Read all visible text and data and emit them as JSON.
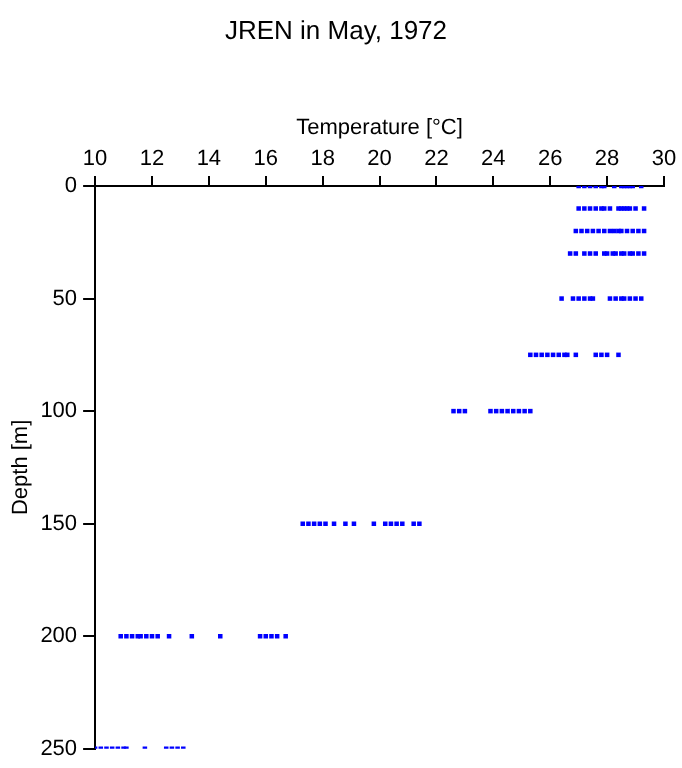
{
  "chart_data": {
    "type": "scatter",
    "title": "JREN in May, 1972",
    "xlabel": "Temperature [°C]",
    "ylabel": "Depth [m]",
    "xlim": [
      10,
      30
    ],
    "xticks": [
      10,
      12,
      14,
      16,
      18,
      20,
      22,
      24,
      26,
      28,
      30
    ],
    "ylim": [
      250,
      0
    ],
    "yticks": [
      0,
      50,
      100,
      150,
      200,
      250
    ],
    "grid": false,
    "legend": false,
    "marker": "square",
    "series": [
      {
        "color": "#0000ff",
        "x": [
          27.0,
          27.2,
          27.4,
          27.6,
          27.8,
          27.9,
          28.25,
          28.5,
          28.6,
          28.7,
          28.8,
          28.9,
          29.2,
          27.0,
          27.2,
          27.4,
          27.6,
          27.8,
          27.9,
          28.1,
          28.4,
          28.5,
          28.6,
          28.7,
          28.8,
          29.0,
          29.3,
          26.9,
          27.1,
          27.3,
          27.5,
          27.7,
          27.9,
          28.1,
          28.25,
          28.4,
          28.5,
          28.7,
          28.9,
          29.1,
          29.3,
          26.7,
          26.9,
          27.2,
          27.4,
          27.6,
          27.9,
          28.0,
          28.2,
          28.3,
          28.5,
          28.6,
          28.8,
          28.9,
          29.1,
          29.3,
          26.4,
          26.8,
          27.0,
          27.2,
          27.4,
          27.5,
          28.1,
          28.3,
          28.5,
          28.6,
          28.8,
          29.0,
          29.2,
          25.3,
          25.5,
          25.7,
          25.9,
          26.1,
          26.3,
          26.5,
          26.6,
          26.9,
          27.6,
          27.8,
          28.0,
          28.4,
          22.6,
          22.8,
          23.0,
          23.9,
          24.1,
          24.3,
          24.5,
          24.7,
          24.9,
          25.1,
          25.3,
          17.3,
          17.5,
          17.7,
          17.9,
          18.1,
          18.4,
          18.8,
          19.1,
          19.8,
          20.2,
          20.4,
          20.6,
          20.8,
          21.2,
          21.4,
          10.9,
          11.1,
          11.3,
          11.5,
          11.6,
          11.8,
          12.0,
          12.2,
          12.6,
          13.4,
          14.4,
          15.8,
          16.0,
          16.2,
          16.4,
          16.7,
          10.0,
          10.2,
          10.4,
          10.6,
          10.8,
          11.0,
          11.1,
          11.75,
          12.5,
          12.7,
          12.9,
          13.1
        ],
        "values": [
          0,
          0,
          0,
          0,
          0,
          0,
          0,
          0,
          0,
          0,
          0,
          0,
          0,
          10,
          10,
          10,
          10,
          10,
          10,
          10,
          10,
          10,
          10,
          10,
          10,
          10,
          10,
          20,
          20,
          20,
          20,
          20,
          20,
          20,
          20,
          20,
          20,
          20,
          20,
          20,
          20,
          30,
          30,
          30,
          30,
          30,
          30,
          30,
          30,
          30,
          30,
          30,
          30,
          30,
          30,
          30,
          50,
          50,
          50,
          50,
          50,
          50,
          50,
          50,
          50,
          50,
          50,
          50,
          50,
          75,
          75,
          75,
          75,
          75,
          75,
          75,
          75,
          75,
          75,
          75,
          75,
          75,
          100,
          100,
          100,
          100,
          100,
          100,
          100,
          100,
          100,
          100,
          100,
          150,
          150,
          150,
          150,
          150,
          150,
          150,
          150,
          150,
          150,
          150,
          150,
          150,
          150,
          150,
          200,
          200,
          200,
          200,
          200,
          200,
          200,
          200,
          200,
          200,
          200,
          200,
          200,
          200,
          200,
          200,
          250,
          250,
          250,
          250,
          250,
          250,
          250,
          250,
          250,
          250,
          250,
          250
        ]
      }
    ]
  }
}
